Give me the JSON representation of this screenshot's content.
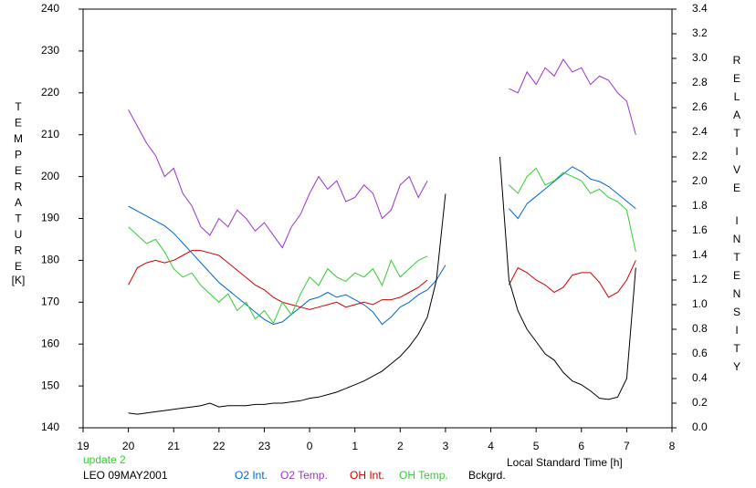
{
  "chart_data": {
    "type": "line",
    "y_label": "TEMPERATURE",
    "y_unit": "[K]",
    "y2_label": "RELATIVE INTENSITY",
    "x_label": "Local Standard Time [h]",
    "status": "update 2",
    "station": "LEO 09MAY2001",
    "xlim": [
      19,
      32
    ],
    "xticks": [
      19,
      20,
      21,
      22,
      23,
      {
        "value": 24,
        "label": "0"
      },
      {
        "value": 25,
        "label": "1"
      },
      {
        "value": 26,
        "label": "2"
      },
      {
        "value": 27,
        "label": "3"
      },
      {
        "value": 28,
        "label": "4"
      },
      {
        "value": 29,
        "label": "5"
      },
      {
        "value": 30,
        "label": "6"
      },
      {
        "value": 31,
        "label": "7"
      },
      {
        "value": 32,
        "label": "8"
      }
    ],
    "ylim": [
      140,
      240
    ],
    "yticks": [
      140,
      150,
      160,
      170,
      180,
      190,
      200,
      210,
      220,
      230,
      240
    ],
    "y2lim": [
      0,
      3.4
    ],
    "y2ticks": [
      {
        "value": 0,
        "label": "0.0"
      },
      0.2,
      0.4,
      0.6,
      0.8,
      {
        "value": 1,
        "label": "1.0"
      },
      1.2,
      1.4,
      1.6,
      1.8,
      {
        "value": 2,
        "label": "2.0"
      },
      2.2,
      2.4,
      2.6,
      2.8,
      {
        "value": 3,
        "label": "3.0"
      },
      3.2,
      3.4
    ],
    "x": [
      20,
      20.2,
      20.4,
      20.6,
      20.8,
      21,
      21.2,
      21.4,
      21.6,
      21.8,
      22,
      22.2,
      22.4,
      22.6,
      22.8,
      23,
      23.2,
      23.4,
      23.6,
      23.8,
      24,
      24.2,
      24.4,
      24.6,
      24.8,
      25,
      25.2,
      25.4,
      25.6,
      25.8,
      26,
      26.2,
      26.4,
      26.6,
      26.8,
      27,
      27.2,
      27.4,
      27.6,
      27.8,
      28,
      28.2,
      28.4,
      28.6,
      28.8,
      29,
      29.2,
      29.4,
      29.6,
      29.8,
      30,
      30.2,
      30.4,
      30.6,
      30.8,
      31,
      31.2,
      31.4
    ],
    "series": [
      {
        "name": "O2 Int.",
        "color": "#0066cc",
        "axis": "y2",
        "values": [
          1.8,
          1.76,
          1.72,
          1.68,
          1.64,
          1.58,
          1.5,
          1.42,
          1.34,
          1.26,
          1.18,
          1.12,
          1.06,
          1.0,
          0.94,
          0.88,
          0.84,
          0.86,
          0.92,
          0.98,
          1.04,
          1.06,
          1.1,
          1.06,
          1.08,
          1.04,
          1.0,
          0.94,
          0.84,
          0.9,
          0.98,
          1.02,
          1.08,
          1.12,
          1.2,
          1.32,
          null,
          null,
          null,
          null,
          null,
          null,
          1.78,
          1.7,
          1.82,
          1.88,
          1.94,
          2.0,
          2.06,
          2.12,
          2.08,
          2.02,
          2.0,
          1.96,
          1.9,
          1.84,
          1.78,
          null
        ]
      },
      {
        "name": "O2 Temp.",
        "color": "#9933cc",
        "values": [
          216,
          212,
          208,
          205,
          200,
          202,
          196,
          193,
          188,
          186,
          190,
          188,
          192,
          190,
          187,
          189,
          186,
          183,
          188,
          191,
          196,
          200,
          197,
          199,
          194,
          195,
          198,
          196,
          190,
          192,
          198,
          200,
          195,
          199,
          null,
          null,
          null,
          null,
          null,
          null,
          null,
          null,
          221,
          220,
          225,
          222,
          226,
          224,
          228,
          225,
          226,
          222,
          224,
          223,
          220,
          218,
          210,
          null
        ]
      },
      {
        "name": "OH Int.",
        "color": "#cc0000",
        "axis": "y2",
        "values": [
          1.16,
          1.3,
          1.34,
          1.36,
          1.34,
          1.36,
          1.4,
          1.44,
          1.44,
          1.42,
          1.4,
          1.34,
          1.28,
          1.22,
          1.16,
          1.12,
          1.06,
          1.02,
          1.0,
          0.98,
          0.96,
          0.98,
          1.0,
          1.02,
          0.98,
          1.0,
          1.02,
          1.0,
          1.04,
          1.04,
          1.06,
          1.1,
          1.14,
          1.2,
          null,
          null,
          null,
          null,
          null,
          null,
          null,
          null,
          1.16,
          1.3,
          1.26,
          1.2,
          1.16,
          1.1,
          1.14,
          1.24,
          1.26,
          1.26,
          1.18,
          1.06,
          1.1,
          1.2,
          1.36,
          null
        ]
      },
      {
        "name": "OH Temp.",
        "color": "#33cc33",
        "values": [
          188,
          186,
          184,
          185,
          182,
          178,
          176,
          177,
          174,
          172,
          170,
          172,
          168,
          170,
          166,
          168,
          165,
          170,
          167,
          172,
          176,
          174,
          178,
          176,
          175,
          177,
          176,
          178,
          174,
          180,
          176,
          178,
          180,
          181,
          null,
          null,
          null,
          null,
          null,
          null,
          null,
          null,
          198,
          196,
          200,
          202,
          198,
          199,
          201,
          200,
          199,
          196,
          197,
          195,
          194,
          192,
          182,
          null
        ]
      },
      {
        "name": "Bckgrd.",
        "color": "#000000",
        "axis": "y2",
        "values": [
          0.12,
          0.11,
          0.12,
          0.13,
          0.14,
          0.15,
          0.16,
          0.17,
          0.18,
          0.2,
          0.17,
          0.18,
          0.18,
          0.18,
          0.19,
          0.19,
          0.2,
          0.2,
          0.21,
          0.22,
          0.24,
          0.25,
          0.27,
          0.29,
          0.32,
          0.35,
          0.38,
          0.42,
          0.46,
          0.52,
          0.58,
          0.66,
          0.76,
          0.9,
          1.2,
          1.9,
          null,
          null,
          null,
          null,
          null,
          2.2,
          1.2,
          0.95,
          0.8,
          0.7,
          0.6,
          0.55,
          0.45,
          0.38,
          0.35,
          0.3,
          0.24,
          0.23,
          0.25,
          0.4,
          1.3,
          null
        ]
      }
    ]
  }
}
